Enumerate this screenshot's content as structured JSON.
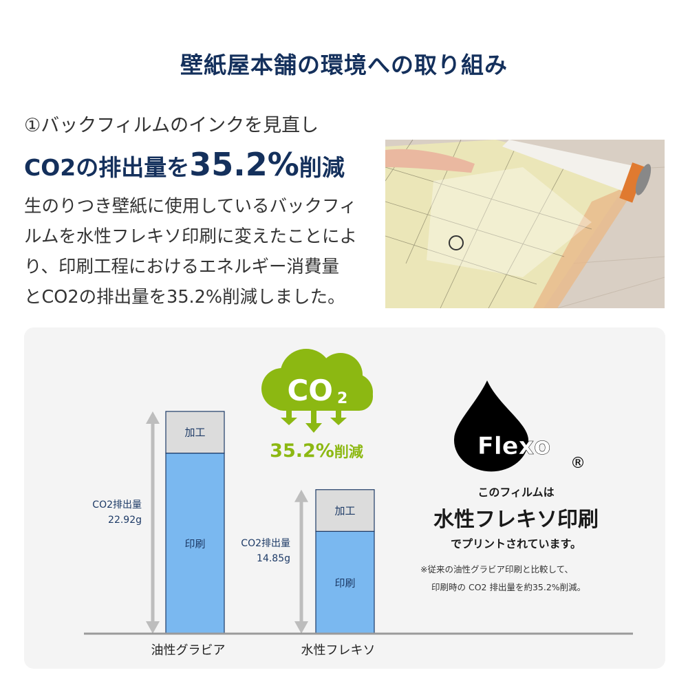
{
  "header": {
    "title": "壁紙屋本舗の環境への取り組み"
  },
  "section": {
    "subtitle": "①バックフィルムのインクを見直し",
    "headline_pre": "CO2の排出量を",
    "headline_value": "35.2%",
    "headline_post": "削減",
    "paragraph_lines": [
      "生のりつき壁紙に使用しているバックフィ",
      "ルムを水性フレキソ印刷に変えたことによ",
      "り、印刷工程におけるエネルギー消費量",
      "とCO2の排出量を35.2%削減しました。"
    ]
  },
  "badge": {
    "cloud_text": "CO",
    "cloud_sub": "2",
    "reduction_value": "35.2%",
    "reduction_label": "削減",
    "color": "#8cb812"
  },
  "logo": {
    "text": "Flexo",
    "registered": "®"
  },
  "info": {
    "line1": "このフィルムは",
    "line2": "水性フレキソ印刷",
    "line3": "でプリントされています。",
    "note1": "※従来の油性グラビア印刷と比較して、",
    "note2": "印刷時の CO2 排出量を約35.2%削減。"
  },
  "chart_data": {
    "type": "bar",
    "stacked": true,
    "categories": [
      "油性グラビア",
      "水性フレキソ"
    ],
    "series": [
      {
        "name": "印刷",
        "values": [
          18.62,
          10.55
        ],
        "color": "#7ab8f0"
      },
      {
        "name": "加工",
        "values": [
          4.3,
          4.3
        ],
        "color": "#dcdcdc"
      }
    ],
    "totals": [
      {
        "label": "CO2排出量",
        "value": "22.92g",
        "amount": 22.92
      },
      {
        "label": "CO2排出量",
        "value": "14.85g",
        "amount": 14.85
      }
    ],
    "ylim": [
      0,
      22.92
    ],
    "grid": false
  }
}
